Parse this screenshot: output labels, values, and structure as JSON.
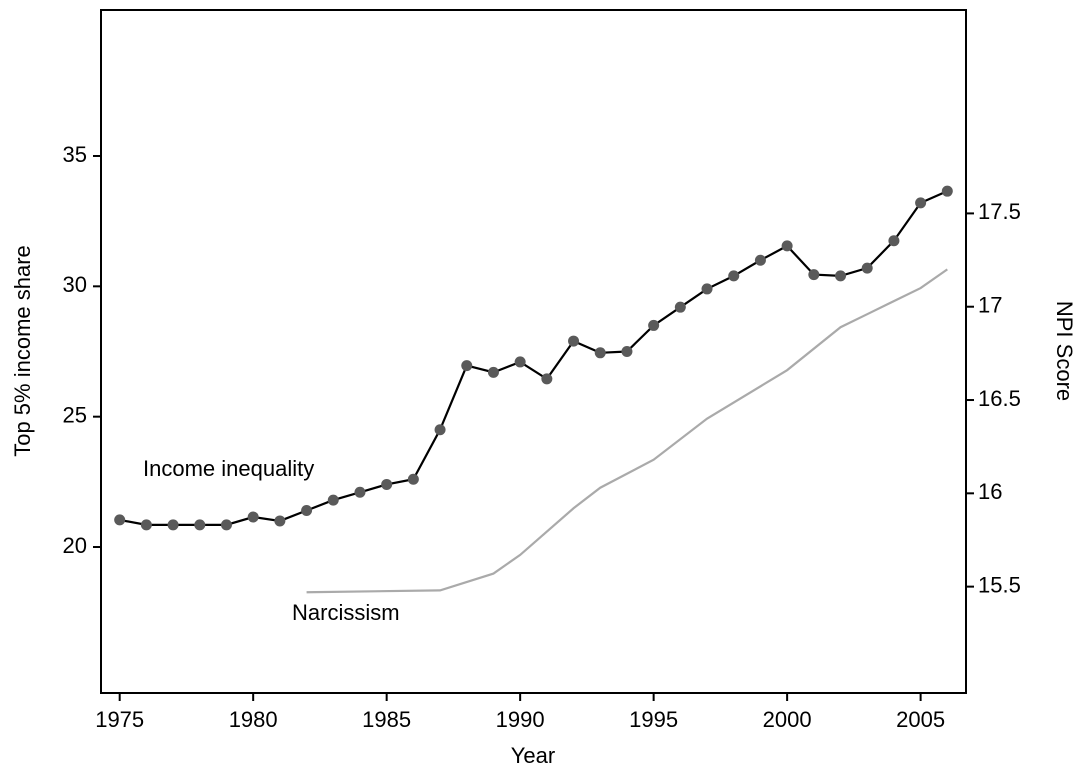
{
  "chart_data": {
    "type": "line",
    "x_label": "Year",
    "y_label": "Top 5% income share",
    "y2_label": "NPI Score",
    "xlim": [
      1974.3,
      2006.7
    ],
    "xticks": [
      1975,
      1980,
      1985,
      1990,
      1995,
      2000,
      2005
    ],
    "ylim": [
      14.4,
      40.6
    ],
    "yticks": [
      20,
      25,
      30,
      35
    ],
    "y2lim": [
      14.93,
      18.59
    ],
    "y2ticks": [
      15.5,
      16,
      16.5,
      17,
      17.5
    ],
    "annotations": [
      "Income inequality",
      "Narcissism"
    ],
    "series": [
      {
        "name": "Income inequality",
        "color": "#000000",
        "marker_color": "#5a5a5a",
        "markers": true,
        "x": [
          1975,
          1976,
          1977,
          1978,
          1979,
          1980,
          1981,
          1982,
          1983,
          1984,
          1985,
          1986,
          1987,
          1988,
          1989,
          1990,
          1991,
          1992,
          1993,
          1994,
          1995,
          1996,
          1997,
          1998,
          1999,
          2000,
          2001,
          2002,
          2003,
          2004,
          2005,
          2006
        ],
        "values": [
          21.04,
          20.85,
          20.85,
          20.85,
          20.85,
          21.15,
          21.0,
          21.4,
          21.8,
          22.1,
          22.4,
          22.6,
          24.5,
          26.96,
          26.7,
          27.1,
          26.45,
          27.9,
          27.45,
          27.5,
          28.5,
          29.2,
          29.9,
          30.4,
          31.0,
          31.55,
          30.45,
          30.4,
          30.7,
          31.75,
          33.2,
          33.65
        ]
      },
      {
        "name": "Narcissism",
        "color": "#aaaaaa",
        "markers": false,
        "axis": "y2",
        "x": [
          1982,
          1987,
          1989,
          1990,
          1992,
          1993,
          1995,
          1997,
          2000,
          2002,
          2003,
          2005,
          2006
        ],
        "values": [
          15.47,
          15.48,
          15.57,
          15.67,
          15.92,
          16.03,
          16.18,
          16.4,
          16.66,
          16.89,
          16.96,
          17.1,
          17.2
        ]
      }
    ]
  }
}
